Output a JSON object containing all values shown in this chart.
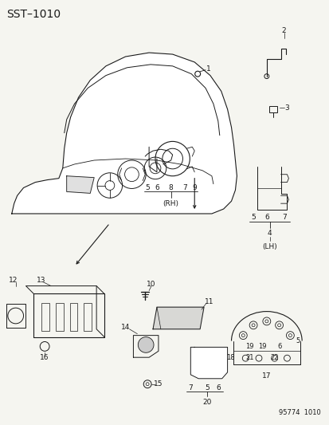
{
  "title": "SST–1010",
  "footer": "95774  1010",
  "bg_color": "#f5f5f0",
  "fg_color": "#1a1a1a",
  "title_fontsize": 10,
  "label_fontsize": 6.5,
  "footer_fontsize": 6
}
